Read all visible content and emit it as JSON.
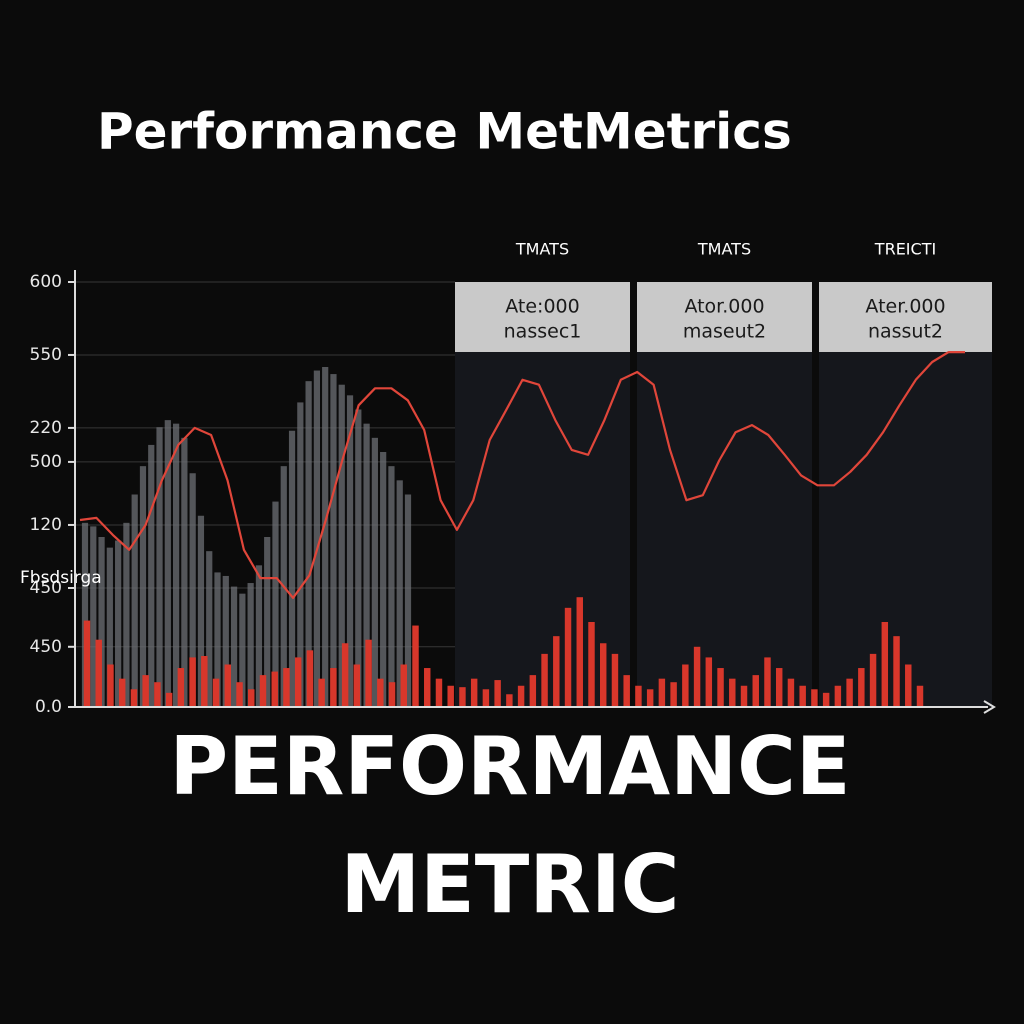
{
  "title": "Performance MetMetrics",
  "panels": [
    {
      "header": "TMATS",
      "line1": "Ate:000",
      "line2": "nassec1"
    },
    {
      "header": "TMATS",
      "line1": "Ator.000",
      "line2": "maseut2"
    },
    {
      "header": "TREICTI",
      "line1": "Ater.000",
      "line2": "nassut2"
    }
  ],
  "footer": [
    "PERFORMANCE",
    "METRIC"
  ],
  "chart_data": {
    "type": "combo",
    "ylabel": "Fbsdsirga",
    "ylim": [
      0,
      600
    ],
    "yticks": [
      {
        "value": 0,
        "label": "0.0"
      },
      {
        "value": 85,
        "label": "450"
      },
      {
        "value": 168,
        "label": "450"
      },
      {
        "value": 257,
        "label": "120"
      },
      {
        "value": 346,
        "label": "500"
      },
      {
        "value": 394,
        "label": "220"
      },
      {
        "value": 497,
        "label": "550"
      },
      600
    ],
    "grid": true,
    "series": [
      {
        "type": "bar",
        "color": "#6e7076",
        "values": [
          260,
          255,
          240,
          225,
          235,
          260,
          300,
          340,
          370,
          395,
          405,
          400,
          380,
          330,
          270,
          220,
          190,
          185,
          170,
          160,
          175,
          200,
          240,
          290,
          340,
          390,
          430,
          460,
          475,
          480,
          470,
          455,
          440,
          420,
          400,
          380,
          360,
          340,
          320,
          300
        ]
      },
      {
        "type": "bar",
        "color": "#d8372b",
        "values": [
          122,
          95,
          60,
          40,
          25,
          45,
          35,
          20,
          55,
          70,
          72,
          40,
          60,
          35,
          25,
          45,
          50,
          55,
          70,
          80,
          40,
          55,
          90,
          60,
          95,
          40,
          35,
          60,
          115,
          55,
          40,
          30,
          28,
          40,
          25,
          38,
          18,
          30,
          45,
          75,
          100,
          140,
          155,
          120,
          90,
          75,
          45,
          30,
          25,
          40,
          35,
          60,
          85,
          70,
          55,
          40,
          30,
          45,
          70,
          55,
          40,
          30,
          25,
          20,
          30,
          40,
          55,
          75,
          120,
          100,
          60,
          30
        ]
      },
      {
        "type": "line",
        "color": "#e0463a",
        "values": [
          264,
          267,
          243,
          222,
          257,
          320,
          370,
          394,
          384,
          320,
          222,
          182,
          182,
          154,
          186,
          264,
          348,
          426,
          450,
          450,
          433,
          391,
          292,
          250,
          292,
          377,
          419,
          462,
          455,
          405,
          363,
          356,
          405,
          462,
          473,
          455,
          363,
          292,
          299,
          348,
          388,
          398,
          384,
          356,
          327,
          313,
          313,
          332,
          356,
          388,
          426,
          462,
          487,
          501,
          501
        ]
      }
    ]
  }
}
